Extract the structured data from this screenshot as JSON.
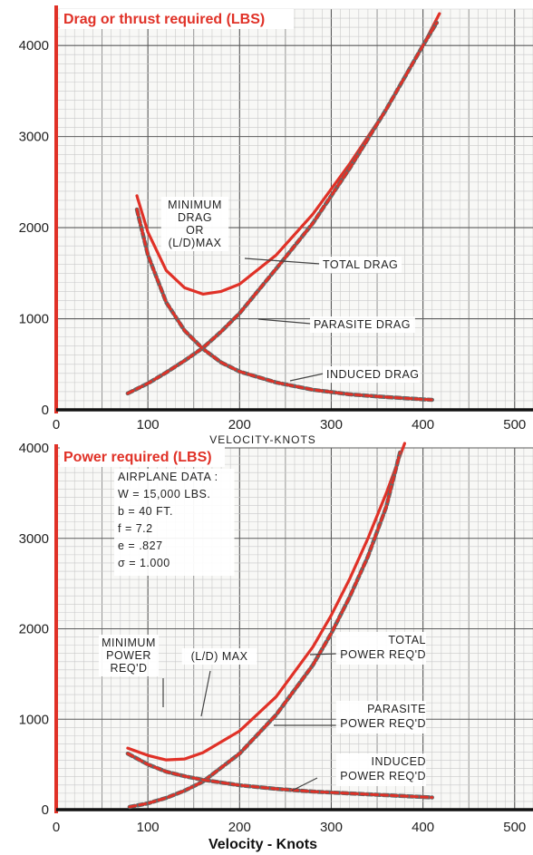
{
  "colors": {
    "accent": "#e03127",
    "grid_minor": "#c9c9c9",
    "grid_major": "#5a5a5a",
    "ink": "#222222"
  },
  "chart_data": [
    {
      "type": "line",
      "title": "Drag or thrust required (LBS)",
      "xlabel": "VELOCITY-KNOTS",
      "ylabel": "",
      "xlim": [
        0,
        520
      ],
      "ylim": [
        0,
        4400
      ],
      "xticks": [
        "0",
        "100",
        "200",
        "300",
        "400",
        "500"
      ],
      "yticks": [
        "0",
        "1000",
        "2000",
        "3000",
        "4000"
      ],
      "grid": true,
      "series": [
        {
          "name": "TOTAL DRAG",
          "x": [
            88,
            100,
            120,
            140,
            160,
            180,
            200,
            240,
            280,
            320,
            360,
            400,
            418
          ],
          "values": [
            2350,
            1950,
            1530,
            1340,
            1270,
            1300,
            1380,
            1700,
            2150,
            2700,
            3300,
            4000,
            4350
          ]
        },
        {
          "name": "PARASITE DRAG",
          "x": [
            78,
            100,
            120,
            140,
            160,
            180,
            200,
            240,
            280,
            320,
            360,
            400,
            415
          ],
          "values": [
            180,
            290,
            410,
            540,
            680,
            860,
            1060,
            1550,
            2050,
            2650,
            3300,
            4000,
            4250
          ]
        },
        {
          "name": "INDUCED DRAG",
          "x": [
            88,
            100,
            120,
            140,
            160,
            180,
            200,
            240,
            280,
            320,
            360,
            400,
            410
          ],
          "values": [
            2200,
            1700,
            1180,
            870,
            670,
            520,
            420,
            300,
            220,
            170,
            140,
            115,
            110
          ]
        }
      ],
      "annotations": [
        {
          "lines": [
            "MINIMUM",
            "DRAG",
            "OR",
            "(L/D)MAX"
          ]
        },
        {
          "lines": [
            "TOTAL DRAG"
          ]
        },
        {
          "lines": [
            "PARASITE DRAG"
          ]
        },
        {
          "lines": [
            "INDUCED DRAG"
          ]
        }
      ]
    },
    {
      "type": "line",
      "title": "Power required (LBS)",
      "xlabel": "Velocity - Knots",
      "ylabel": "",
      "xlim": [
        0,
        520
      ],
      "ylim": [
        0,
        4000
      ],
      "xticks": [
        "0",
        "100",
        "200",
        "300",
        "400",
        "500"
      ],
      "yticks": [
        "0",
        "1000",
        "2000",
        "3000",
        "4000"
      ],
      "grid": true,
      "series": [
        {
          "name": "TOTAL POWER REQ'D",
          "x": [
            78,
            100,
            120,
            140,
            160,
            200,
            240,
            280,
            300,
            320,
            340,
            360,
            380
          ],
          "values": [
            680,
            600,
            550,
            560,
            630,
            870,
            1250,
            1800,
            2150,
            2550,
            3000,
            3500,
            4050
          ]
        },
        {
          "name": "PARASITE POWER REQ'D",
          "x": [
            80,
            100,
            120,
            140,
            160,
            200,
            240,
            280,
            300,
            320,
            340,
            360,
            375
          ],
          "values": [
            30,
            70,
            130,
            210,
            310,
            620,
            1050,
            1600,
            1950,
            2350,
            2800,
            3350,
            3950
          ]
        },
        {
          "name": "INDUCED POWER REQ'D",
          "x": [
            78,
            100,
            120,
            140,
            160,
            200,
            240,
            280,
            320,
            360,
            400,
            410
          ],
          "values": [
            620,
            500,
            420,
            370,
            330,
            270,
            230,
            200,
            180,
            160,
            140,
            135
          ]
        }
      ],
      "annotations": [
        {
          "lines": [
            "AIRPLANE DATA :",
            "W = 15,000 LBS.",
            "b = 40 FT.",
            "f = 7.2",
            "e = .827",
            "σ = 1.000"
          ]
        },
        {
          "lines": [
            "MINIMUM",
            "POWER",
            "REQ'D"
          ]
        },
        {
          "lines": [
            "(L/D) MAX"
          ]
        },
        {
          "lines": [
            "TOTAL",
            "POWER REQ'D"
          ]
        },
        {
          "lines": [
            "PARASITE",
            "POWER REQ'D"
          ]
        },
        {
          "lines": [
            "INDUCED",
            "POWER REQ'D"
          ]
        }
      ]
    }
  ]
}
